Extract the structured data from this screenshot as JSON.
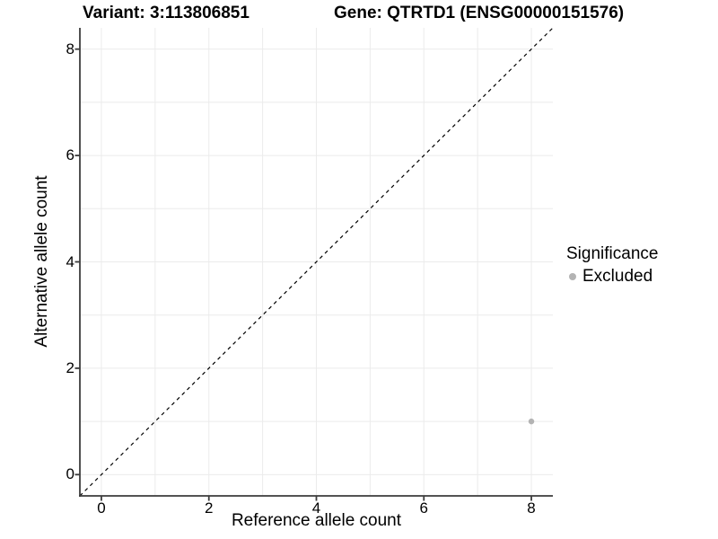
{
  "chart_data": {
    "type": "scatter",
    "titles": {
      "left": "Variant: 3:113806851",
      "right": "Gene: QTRTD1 (ENSG00000151576)"
    },
    "xlabel": "Reference allele count",
    "ylabel": "Alternative allele count",
    "xlim": [
      -0.4,
      8.4
    ],
    "ylim": [
      -0.4,
      8.4
    ],
    "x_ticks": [
      0,
      2,
      4,
      6,
      8
    ],
    "y_ticks": [
      0,
      2,
      4,
      6,
      8
    ],
    "grid": true,
    "grid_interval": 1,
    "points": [
      {
        "x": 8,
        "y": 1,
        "series": "Excluded"
      }
    ],
    "reference_line": {
      "slope": 1,
      "intercept": 0,
      "style": "dashed"
    },
    "legend": {
      "title": "Significance",
      "position": "right",
      "items": [
        {
          "label": "Excluded",
          "color": "#b3b3b3"
        }
      ]
    },
    "colors": {
      "grid": "#ebebeb",
      "axis": "#3c3c3c",
      "reference_line": "#000000",
      "point": "#b3b3b3",
      "text": "#000000"
    }
  }
}
